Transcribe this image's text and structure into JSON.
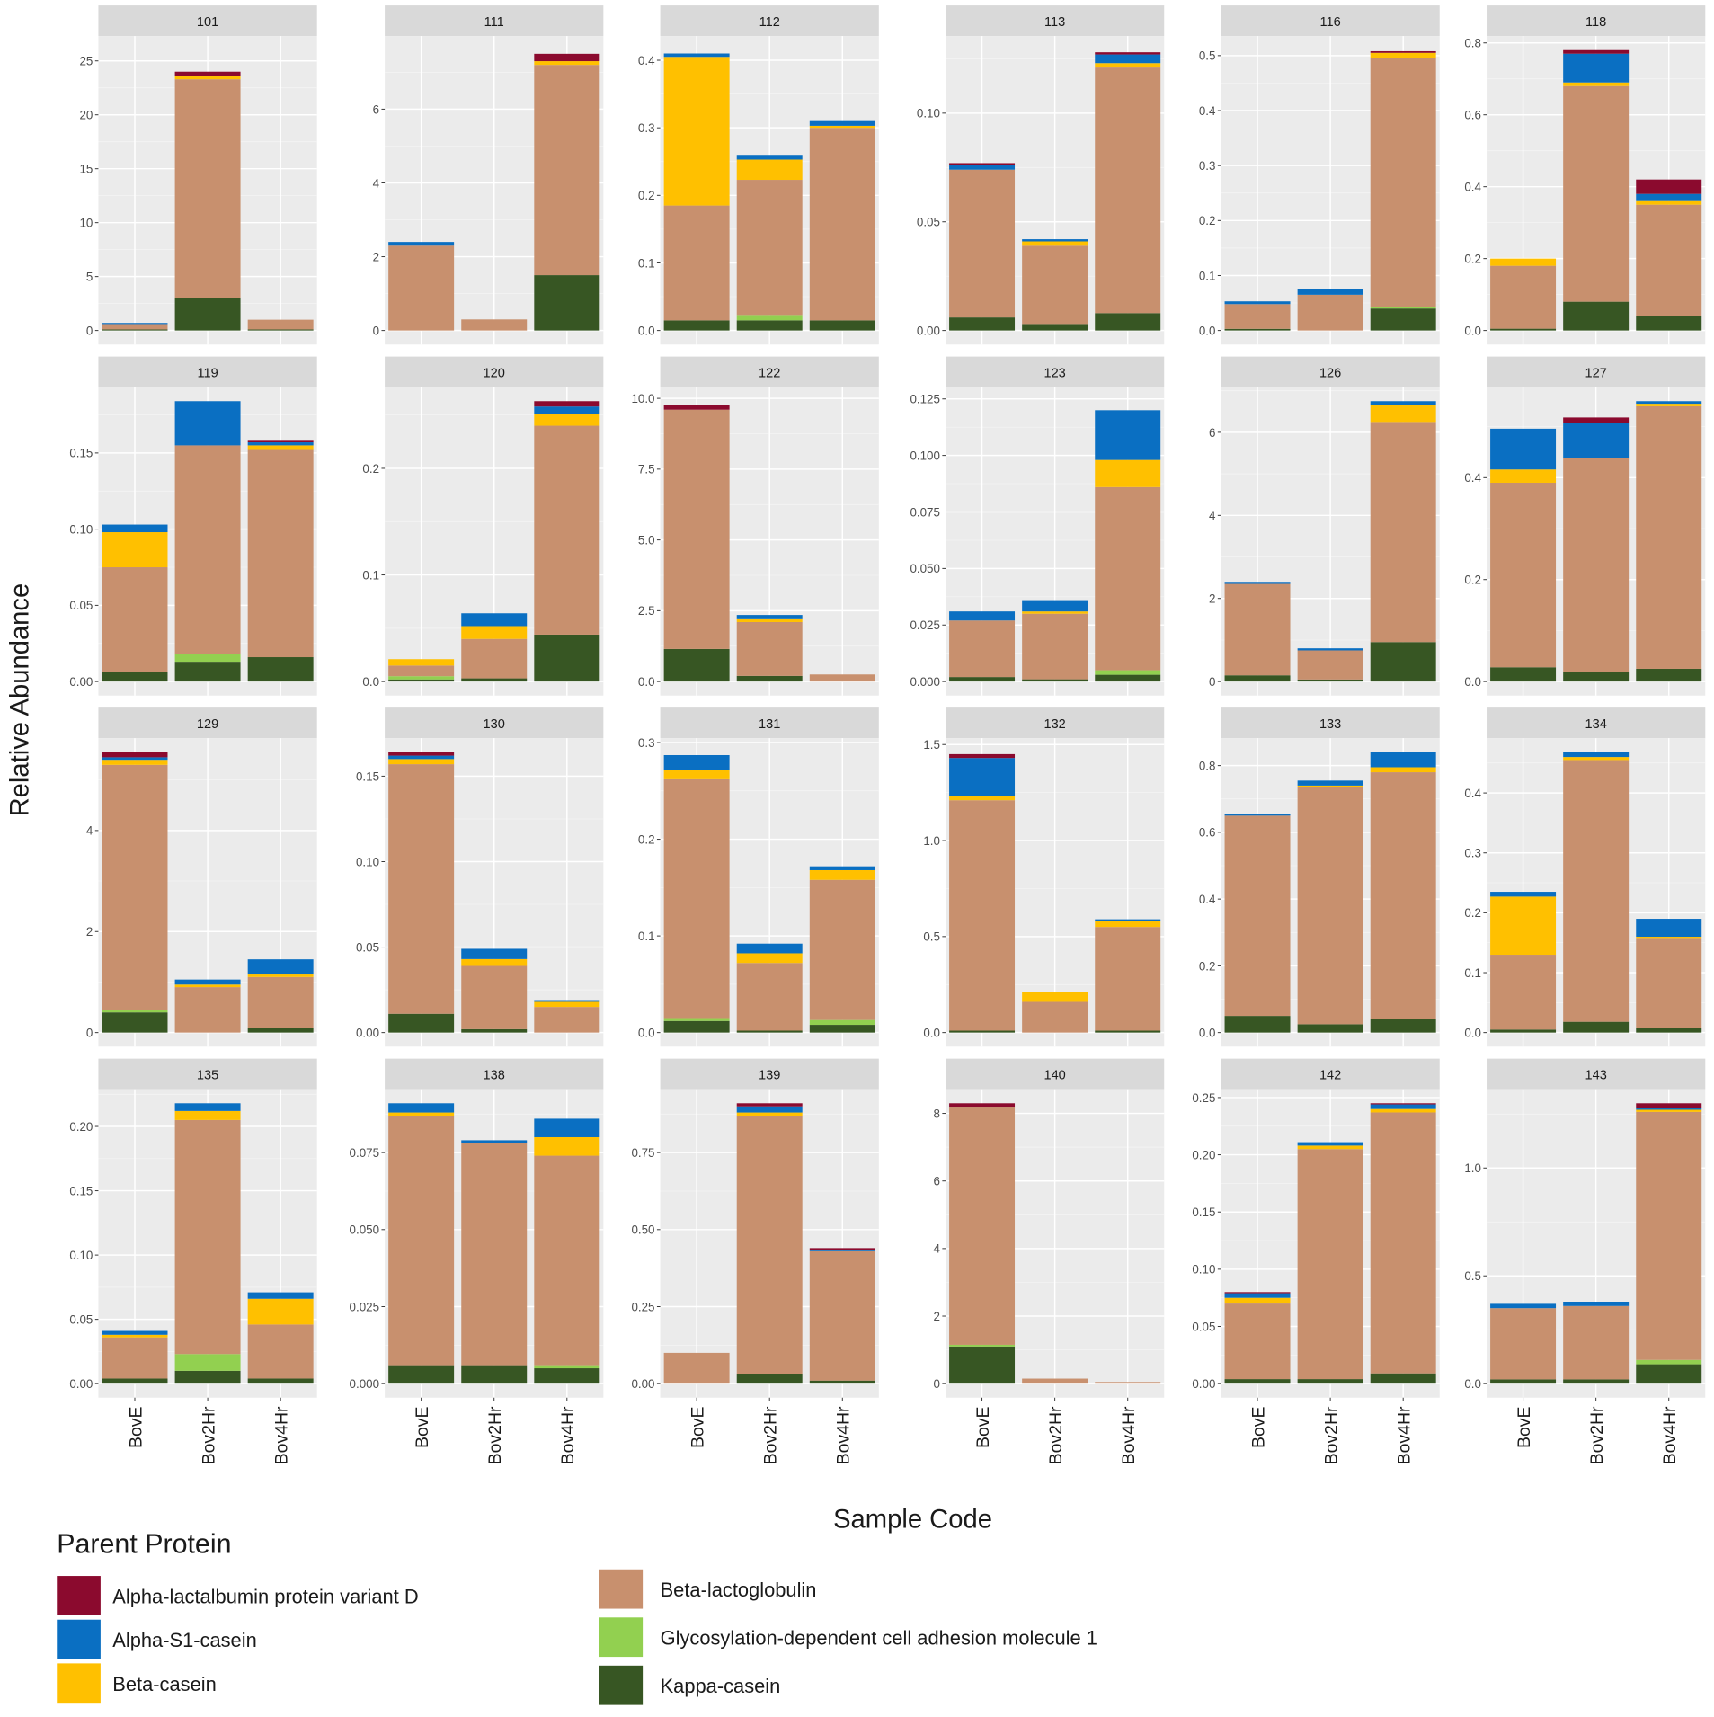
{
  "chart_data": {
    "type": "bar",
    "stacked": true,
    "facet_scales": "free_y",
    "xlabel": "Sample Code",
    "ylabel": "Relative Abundance",
    "categories": [
      "BovE",
      "Bov2Hr",
      "Bov4Hr"
    ],
    "value_order": [
      "Kappa-casein",
      "Glycosylation-dependent cell adhesion molecule 1",
      "Beta-lactoglobulin",
      "Beta-casein",
      "Alpha-S1-casein",
      "Alpha-lactalbumin protein variant D"
    ],
    "legend": {
      "title": "Parent Protein",
      "placement": "bottom",
      "items": [
        {
          "label": "Alpha-lactalbumin protein variant D",
          "color": "#8B0A2E"
        },
        {
          "label": "Alpha-S1-casein",
          "color": "#0A6FC2"
        },
        {
          "label": "Beta-casein",
          "color": "#FFC000"
        },
        {
          "label": "Beta-lactoglobulin",
          "color": "#C8906E"
        },
        {
          "label": "Glycosylation-dependent cell adhesion molecule 1",
          "color": "#92D050"
        },
        {
          "label": "Kappa-casein",
          "color": "#375623"
        }
      ]
    },
    "facets": [
      {
        "id": "101",
        "ticks": [
          "0",
          "5",
          "10",
          "15",
          "20",
          "25"
        ],
        "ymax": 26,
        "bars": [
          [
            0.1,
            0,
            0.5,
            0,
            0.1,
            0
          ],
          [
            3.0,
            0,
            20.3,
            0.3,
            0,
            0.4
          ],
          [
            0.1,
            0,
            0.9,
            0,
            0,
            0
          ]
        ]
      },
      {
        "id": "111",
        "ticks": [
          "0",
          "2",
          "4",
          "6"
        ],
        "ymax": 7.6,
        "bars": [
          [
            0,
            0,
            2.3,
            0,
            0.1,
            0
          ],
          [
            0,
            0,
            0.3,
            0,
            0,
            0
          ],
          [
            1.5,
            0,
            5.7,
            0.1,
            0,
            0.2
          ]
        ]
      },
      {
        "id": "112",
        "ticks": [
          "0.0",
          "0.1",
          "0.2",
          "0.3",
          "0.4"
        ],
        "ymax": 0.415,
        "bars": [
          [
            0.015,
            0,
            0.17,
            0.22,
            0.005,
            0
          ],
          [
            0.015,
            0.008,
            0.2,
            0.03,
            0.007,
            0
          ],
          [
            0.015,
            0,
            0.285,
            0.003,
            0.007,
            0
          ]
        ]
      },
      {
        "id": "113",
        "ticks": [
          "0.00",
          "0.05",
          "0.10"
        ],
        "ymax": 0.129,
        "bars": [
          [
            0.006,
            0,
            0.068,
            0,
            0.002,
            0.001
          ],
          [
            0.003,
            0,
            0.036,
            0.002,
            0.001,
            0
          ],
          [
            0.008,
            0,
            0.113,
            0.002,
            0.004,
            0.001
          ]
        ]
      },
      {
        "id": "116",
        "ticks": [
          "0.0",
          "0.1",
          "0.2",
          "0.3",
          "0.4",
          "0.5"
        ],
        "ymax": 0.51,
        "bars": [
          [
            0.003,
            0,
            0.045,
            0,
            0.005,
            0
          ],
          [
            0,
            0,
            0.065,
            0,
            0.01,
            0
          ],
          [
            0.04,
            0.003,
            0.452,
            0.01,
            0,
            0.003
          ]
        ]
      },
      {
        "id": "118",
        "ticks": [
          "0.0",
          "0.2",
          "0.4",
          "0.6",
          "0.8"
        ],
        "ymax": 0.78,
        "bars": [
          [
            0.005,
            0,
            0.175,
            0.02,
            0,
            0
          ],
          [
            0.08,
            0,
            0.6,
            0.01,
            0.08,
            0.01
          ],
          [
            0.04,
            0,
            0.31,
            0.01,
            0.02,
            0.04
          ]
        ]
      },
      {
        "id": "119",
        "ticks": [
          "0.00",
          "0.05",
          "0.10",
          "0.15"
        ],
        "ymax": 0.184,
        "bars": [
          [
            0.006,
            0,
            0.069,
            0.023,
            0.005,
            0
          ],
          [
            0.013,
            0.005,
            0.137,
            0,
            0.029,
            0
          ],
          [
            0.016,
            0,
            0.136,
            0.003,
            0.002,
            0.001
          ]
        ]
      },
      {
        "id": "120",
        "ticks": [
          "0.0",
          "0.1",
          "0.2"
        ],
        "ymax": 0.263,
        "bars": [
          [
            0.002,
            0.003,
            0.01,
            0.006,
            0,
            0
          ],
          [
            0.003,
            0,
            0.037,
            0.012,
            0.012,
            0
          ],
          [
            0.044,
            0,
            0.196,
            0.011,
            0.007,
            0.005
          ]
        ]
      },
      {
        "id": "122",
        "ticks": [
          "0.0",
          "2.5",
          "5.0",
          "7.5",
          "10.0"
        ],
        "ymax": 9.9,
        "bars": [
          [
            1.15,
            0,
            8.45,
            0,
            0,
            0.15
          ],
          [
            0.2,
            0,
            1.9,
            0.1,
            0.15,
            0
          ],
          [
            0,
            0,
            0.25,
            0,
            0,
            0
          ]
        ]
      },
      {
        "id": "123",
        "ticks": [
          "0.000",
          "0.025",
          "0.050",
          "0.075",
          "0.100",
          "0.125"
        ],
        "ymax": 0.124,
        "bars": [
          [
            0.002,
            0,
            0.025,
            0,
            0.004,
            0
          ],
          [
            0.001,
            0,
            0.029,
            0.001,
            0.005,
            0
          ],
          [
            0.003,
            0.002,
            0.081,
            0.012,
            0.022,
            0
          ]
        ]
      },
      {
        "id": "126",
        "ticks": [
          "0",
          "2",
          "4",
          "6"
        ],
        "ymax": 6.75,
        "bars": [
          [
            0.15,
            0,
            2.2,
            0,
            0.05,
            0
          ],
          [
            0.05,
            0,
            0.7,
            0,
            0.05,
            0
          ],
          [
            0.95,
            0,
            5.3,
            0.4,
            0.1,
            0
          ]
        ]
      },
      {
        "id": "127",
        "ticks": [
          "0.0",
          "0.2",
          "0.4"
        ],
        "ymax": 0.55,
        "bars": [
          [
            0.028,
            0,
            0.362,
            0.026,
            0.08,
            0
          ],
          [
            0.018,
            0,
            0.42,
            0,
            0.07,
            0.01
          ],
          [
            0.025,
            0,
            0.515,
            0.005,
            0.005,
            0
          ]
        ]
      },
      {
        "id": "129",
        "ticks": [
          "0",
          "2",
          "4"
        ],
        "ymax": 5.55,
        "bars": [
          [
            0.4,
            0.05,
            4.85,
            0.1,
            0.05,
            0.1
          ],
          [
            0,
            0,
            0.9,
            0.05,
            0.1,
            0
          ],
          [
            0.1,
            0,
            1.0,
            0.05,
            0.3,
            0
          ]
        ]
      },
      {
        "id": "130",
        "ticks": [
          "0.00",
          "0.05",
          "0.10",
          "0.15"
        ],
        "ymax": 0.164,
        "bars": [
          [
            0.011,
            0,
            0.146,
            0.003,
            0.002,
            0.002
          ],
          [
            0.002,
            0,
            0.037,
            0.004,
            0.006,
            0
          ],
          [
            0,
            0,
            0.015,
            0.003,
            0.001,
            0
          ]
        ]
      },
      {
        "id": "131",
        "ticks": [
          "0.0",
          "0.1",
          "0.2",
          "0.3"
        ],
        "ymax": 0.29,
        "bars": [
          [
            0.012,
            0.003,
            0.247,
            0.01,
            0.015,
            0
          ],
          [
            0.002,
            0,
            0.07,
            0.01,
            0.01,
            0
          ],
          [
            0.008,
            0.005,
            0.145,
            0.01,
            0.004,
            0
          ]
        ]
      },
      {
        "id": "132",
        "ticks": [
          "0.0",
          "0.5",
          "1.0",
          "1.5"
        ],
        "ymax": 1.46,
        "bars": [
          [
            0.01,
            0,
            1.2,
            0.02,
            0.2,
            0.02
          ],
          [
            0,
            0,
            0.16,
            0.05,
            0,
            0
          ],
          [
            0.01,
            0,
            0.54,
            0.03,
            0.01,
            0
          ]
        ]
      },
      {
        "id": "133",
        "ticks": [
          "0.0",
          "0.2",
          "0.4",
          "0.6",
          "0.8"
        ],
        "ymax": 0.84,
        "bars": [
          [
            0.05,
            0,
            0.6,
            0,
            0.005,
            0
          ],
          [
            0.025,
            0,
            0.71,
            0.005,
            0.015,
            0
          ],
          [
            0.04,
            0,
            0.74,
            0.015,
            0.045,
            0
          ]
        ]
      },
      {
        "id": "134",
        "ticks": [
          "0.0",
          "0.1",
          "0.2",
          "0.3",
          "0.4"
        ],
        "ymax": 0.468,
        "bars": [
          [
            0.005,
            0,
            0.125,
            0.097,
            0.008,
            0
          ],
          [
            0.018,
            0,
            0.437,
            0.005,
            0.008,
            0
          ],
          [
            0.008,
            0,
            0.15,
            0.002,
            0.03,
            0
          ]
        ]
      },
      {
        "id": "135",
        "ticks": [
          "0.00",
          "0.05",
          "0.10",
          "0.15",
          "0.20"
        ],
        "ymax": 0.218,
        "bars": [
          [
            0.004,
            0,
            0.032,
            0.002,
            0.003,
            0
          ],
          [
            0.01,
            0.013,
            0.182,
            0.007,
            0.006,
            0
          ],
          [
            0.004,
            0,
            0.042,
            0.02,
            0.005,
            0
          ]
        ]
      },
      {
        "id": "138",
        "ticks": [
          "0.000",
          "0.025",
          "0.050",
          "0.075"
        ],
        "ymax": 0.091,
        "bars": [
          [
            0.006,
            0,
            0.081,
            0.001,
            0.003,
            0
          ],
          [
            0.006,
            0,
            0.072,
            0,
            0.001,
            0
          ],
          [
            0.005,
            0.001,
            0.068,
            0.006,
            0.006,
            0
          ]
        ]
      },
      {
        "id": "139",
        "ticks": [
          "0.00",
          "0.25",
          "0.50",
          "0.75"
        ],
        "ymax": 0.91,
        "bars": [
          [
            0,
            0,
            0.1,
            0,
            0,
            0
          ],
          [
            0.03,
            0,
            0.84,
            0.01,
            0.02,
            0.01
          ],
          [
            0.01,
            0,
            0.42,
            0,
            0.005,
            0.005
          ]
        ]
      },
      {
        "id": "140",
        "ticks": [
          "0",
          "2",
          "4",
          "6",
          "8"
        ],
        "ymax": 8.3,
        "bars": [
          [
            1.1,
            0.05,
            7.05,
            0,
            0,
            0.1
          ],
          [
            0,
            0,
            0.15,
            0,
            0,
            0
          ],
          [
            0,
            0,
            0.05,
            0,
            0,
            0
          ]
        ]
      },
      {
        "id": "142",
        "ticks": [
          "0.00",
          "0.05",
          "0.10",
          "0.15",
          "0.20",
          "0.25"
        ],
        "ymax": 0.245,
        "bars": [
          [
            0.004,
            0,
            0.066,
            0.005,
            0.004,
            0.001
          ],
          [
            0.004,
            0,
            0.201,
            0.003,
            0.003,
            0
          ],
          [
            0.009,
            0,
            0.228,
            0.003,
            0.004,
            0.001
          ]
        ]
      },
      {
        "id": "143",
        "ticks": [
          "0.0",
          "0.5",
          "1.0"
        ],
        "ymax": 1.3,
        "bars": [
          [
            0.02,
            0,
            0.33,
            0,
            0.02,
            0
          ],
          [
            0.02,
            0,
            0.34,
            0,
            0.02,
            0
          ],
          [
            0.09,
            0.02,
            1.15,
            0.01,
            0.01,
            0.02
          ]
        ]
      }
    ]
  }
}
